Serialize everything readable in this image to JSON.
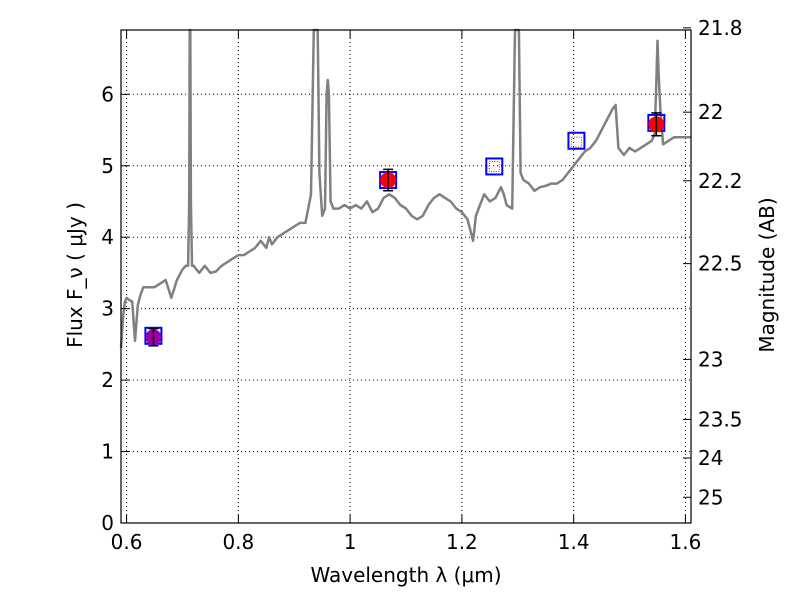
{
  "chart_data": {
    "type": "line",
    "title": "",
    "xlabel": "Wavelength  λ (μm)",
    "ylabel": "Flux  F_ν  ( μJy )",
    "ylabel_right": "Magnitude (AB)",
    "xlim": [
      0.59,
      1.61
    ],
    "ylim": [
      0,
      6.9
    ],
    "grid": true,
    "x_ticks": [
      {
        "value": 0.6,
        "label": "0.6"
      },
      {
        "value": 0.8,
        "label": "0.8"
      },
      {
        "value": 1.0,
        "label": "1"
      },
      {
        "value": 1.2,
        "label": "1.2"
      },
      {
        "value": 1.4,
        "label": "1.4"
      },
      {
        "value": 1.6,
        "label": "1.6"
      }
    ],
    "y_ticks": [
      {
        "value": 0,
        "label": "0"
      },
      {
        "value": 1,
        "label": "1"
      },
      {
        "value": 2,
        "label": "2"
      },
      {
        "value": 3,
        "label": "3"
      },
      {
        "value": 4,
        "label": "4"
      },
      {
        "value": 5,
        "label": "5"
      },
      {
        "value": 6,
        "label": "6"
      }
    ],
    "right_ticks": [
      {
        "label": "21.8",
        "flux": 6.93
      },
      {
        "label": "22",
        "flux": 5.75
      },
      {
        "label": "22.2",
        "flux": 4.79
      },
      {
        "label": "22.5",
        "flux": 3.63
      },
      {
        "label": "23",
        "flux": 2.29
      },
      {
        "label": "23.5",
        "flux": 1.45
      },
      {
        "label": "24",
        "flux": 0.91
      },
      {
        "label": "25",
        "flux": 0.36
      }
    ],
    "series": [
      {
        "style": "model-spectrum",
        "color": "#808080",
        "x": [
          0.59,
          0.594,
          0.597,
          0.6,
          0.605,
          0.61,
          0.615,
          0.62,
          0.625,
          0.63,
          0.64,
          0.65,
          0.66,
          0.67,
          0.68,
          0.69,
          0.7,
          0.706,
          0.71,
          0.712,
          0.713,
          0.7135,
          0.714,
          0.715,
          0.717,
          0.72,
          0.73,
          0.74,
          0.75,
          0.76,
          0.77,
          0.78,
          0.79,
          0.8,
          0.81,
          0.82,
          0.83,
          0.84,
          0.85,
          0.855,
          0.86,
          0.87,
          0.88,
          0.89,
          0.9,
          0.91,
          0.92,
          0.93,
          0.935,
          0.938,
          0.94,
          0.942,
          0.945,
          0.95,
          0.955,
          0.958,
          0.96,
          0.962,
          0.965,
          0.97,
          0.98,
          0.99,
          1.0,
          1.01,
          1.02,
          1.03,
          1.04,
          1.05,
          1.06,
          1.07,
          1.08,
          1.09,
          1.1,
          1.11,
          1.12,
          1.13,
          1.14,
          1.15,
          1.16,
          1.17,
          1.18,
          1.19,
          1.2,
          1.21,
          1.22,
          1.225,
          1.23,
          1.24,
          1.25,
          1.26,
          1.27,
          1.275,
          1.28,
          1.29,
          1.295,
          1.297,
          1.3,
          1.302,
          1.305,
          1.31,
          1.32,
          1.33,
          1.34,
          1.35,
          1.36,
          1.37,
          1.38,
          1.39,
          1.4,
          1.41,
          1.42,
          1.43,
          1.44,
          1.45,
          1.46,
          1.47,
          1.475,
          1.48,
          1.49,
          1.5,
          1.51,
          1.52,
          1.53,
          1.54,
          1.545,
          1.548,
          1.55,
          1.552,
          1.555,
          1.56,
          1.57,
          1.58,
          1.59,
          1.6,
          1.61
        ],
        "y": [
          2.45,
          2.9,
          3.1,
          3.15,
          3.12,
          3.1,
          2.55,
          3.05,
          3.2,
          3.3,
          3.3,
          3.3,
          3.35,
          3.4,
          3.15,
          3.4,
          3.55,
          3.6,
          3.6,
          4.5,
          6.9,
          6.9,
          6.9,
          4.5,
          3.6,
          3.6,
          3.5,
          3.6,
          3.5,
          3.52,
          3.6,
          3.65,
          3.7,
          3.75,
          3.75,
          3.8,
          3.85,
          3.95,
          3.85,
          4.0,
          3.9,
          4.0,
          4.05,
          4.1,
          4.15,
          4.2,
          4.2,
          4.6,
          6.9,
          6.9,
          6.9,
          6.9,
          4.9,
          4.3,
          4.4,
          6.0,
          6.2,
          6.0,
          4.5,
          4.4,
          4.4,
          4.45,
          4.4,
          4.45,
          4.4,
          4.5,
          4.35,
          4.4,
          4.55,
          4.6,
          4.55,
          4.45,
          4.4,
          4.3,
          4.25,
          4.3,
          4.45,
          4.55,
          4.6,
          4.55,
          4.5,
          4.4,
          4.35,
          4.25,
          3.95,
          4.3,
          4.4,
          4.6,
          4.5,
          4.55,
          4.7,
          4.6,
          4.45,
          4.4,
          6.9,
          6.9,
          6.9,
          6.9,
          4.9,
          4.8,
          4.75,
          4.65,
          4.7,
          4.72,
          4.75,
          4.75,
          4.8,
          4.9,
          5.0,
          5.1,
          5.2,
          5.25,
          5.35,
          5.5,
          5.65,
          5.8,
          5.85,
          5.25,
          5.15,
          5.25,
          5.2,
          5.25,
          5.3,
          5.35,
          5.45,
          6.2,
          6.75,
          6.3,
          5.8,
          5.3,
          5.35,
          5.4,
          5.4,
          5.4,
          5.4
        ]
      },
      {
        "style": "measured-red-circle",
        "color": "#ff0000",
        "x": [
          1.068,
          1.548
        ],
        "y": [
          4.8,
          5.58
        ],
        "yerr": [
          0.15,
          0.16
        ]
      },
      {
        "style": "measured-purple-circle",
        "color": "#9900aa",
        "x": [
          0.648
        ],
        "y": [
          2.6
        ],
        "yerr": [
          0.12
        ]
      },
      {
        "style": "open-blue-square",
        "color": "#0000ff",
        "x": [
          0.648,
          1.068,
          1.258,
          1.405,
          1.548
        ],
        "y": [
          2.62,
          4.8,
          4.99,
          5.35,
          5.6
        ]
      },
      {
        "style": "dotted-red-square",
        "color": "#ff0000",
        "x": [
          1.258,
          1.405
        ],
        "y": [
          4.99,
          5.33
        ]
      }
    ]
  }
}
